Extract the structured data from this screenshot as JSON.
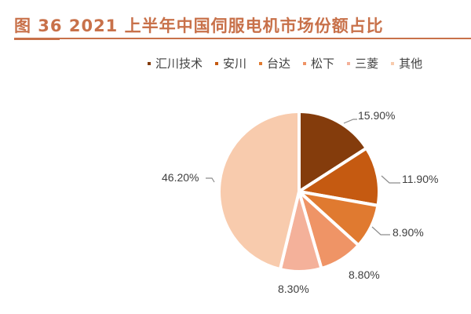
{
  "header": {
    "title": "图 36 2021 上半年中国伺服电机市场份额占比"
  },
  "chart_data": {
    "type": "pie",
    "title": "图 36 2021 上半年中国伺服电机市场份额占比",
    "categories": [
      "汇川技术",
      "安川",
      "台达",
      "松下",
      "三菱",
      "其他"
    ],
    "values": [
      15.9,
      11.9,
      8.9,
      8.8,
      8.3,
      46.2
    ],
    "labels": [
      "15.90%",
      "11.90%",
      "8.90%",
      "8.80%",
      "8.30%",
      "46.20%"
    ],
    "colors": [
      "#843c0c",
      "#c55a11",
      "#e07a30",
      "#ef9466",
      "#f4b19a",
      "#f8cbad"
    ],
    "legend_position": "top-right",
    "start_angle": "12 o'clock, clockwise"
  },
  "legend": {
    "items": [
      {
        "label": "汇川技术",
        "color": "#843c0c"
      },
      {
        "label": "安川",
        "color": "#c55a11"
      },
      {
        "label": "台达",
        "color": "#e07a30"
      },
      {
        "label": "松下",
        "color": "#ef9466"
      },
      {
        "label": "三菱",
        "color": "#f4b19a"
      },
      {
        "label": "其他",
        "color": "#f8cbad"
      }
    ]
  }
}
